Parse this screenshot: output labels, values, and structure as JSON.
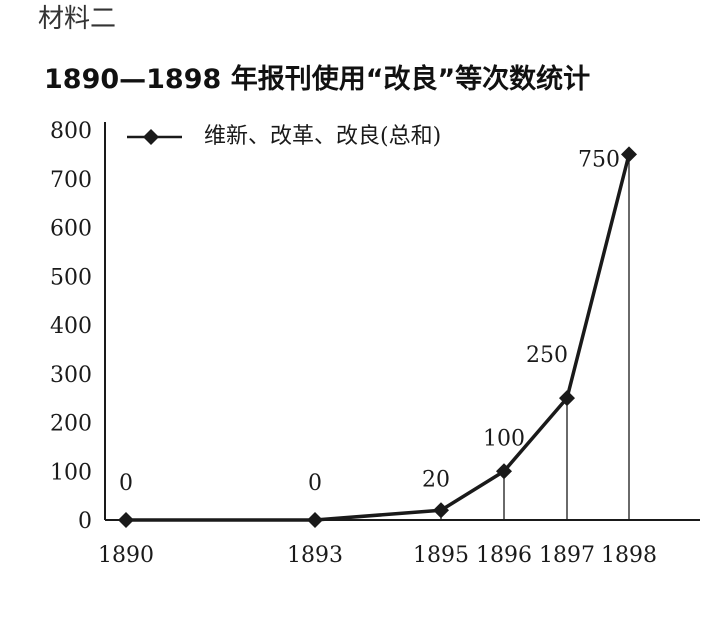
{
  "material_label": "材料二",
  "chart_data": {
    "type": "line",
    "title": "1890—1898 年报刊使用“改良”等次数统计",
    "x": [
      "1890",
      "1893",
      "1895",
      "1896",
      "1897",
      "1898"
    ],
    "series": [
      {
        "name": "维新、改革、改良(总和)",
        "values": [
          0,
          0,
          20,
          100,
          250,
          750
        ],
        "labels": [
          "0",
          "0",
          "20",
          "100",
          "250",
          "750"
        ]
      }
    ],
    "y_ticks": [
      "0",
      "100",
      "200",
      "300",
      "400",
      "500",
      "600",
      "700",
      "800"
    ],
    "ylim": [
      0,
      800
    ],
    "xlabel": "",
    "ylabel": "",
    "legend_position": "top-left",
    "grid": false,
    "drop_lines": true,
    "marker": "diamond",
    "line_color": "#1a1a1a"
  }
}
